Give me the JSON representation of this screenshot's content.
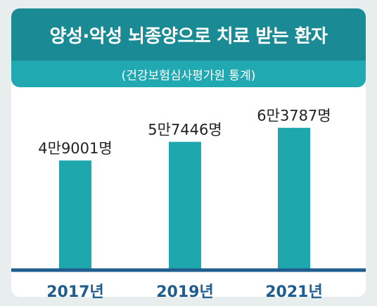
{
  "chart_data": {
    "type": "bar",
    "title": "양성·악성 뇌종양으로 치료 받는 환자",
    "subtitle": "(건강보험심사평가원 통계)",
    "categories": [
      "2017년",
      "2019년",
      "2021년"
    ],
    "values": [
      49001,
      57446,
      63787
    ],
    "data_labels": [
      "4만9001명",
      "5만7446명",
      "6만3787명"
    ],
    "ylim": [
      0,
      70000
    ],
    "grid": false,
    "legend": "none",
    "bar_color": "#1fa7ae",
    "axis_color": "#1f5d8f",
    "title_bg": "#1a8b95",
    "subtitle_bg": "#20a9b1"
  }
}
